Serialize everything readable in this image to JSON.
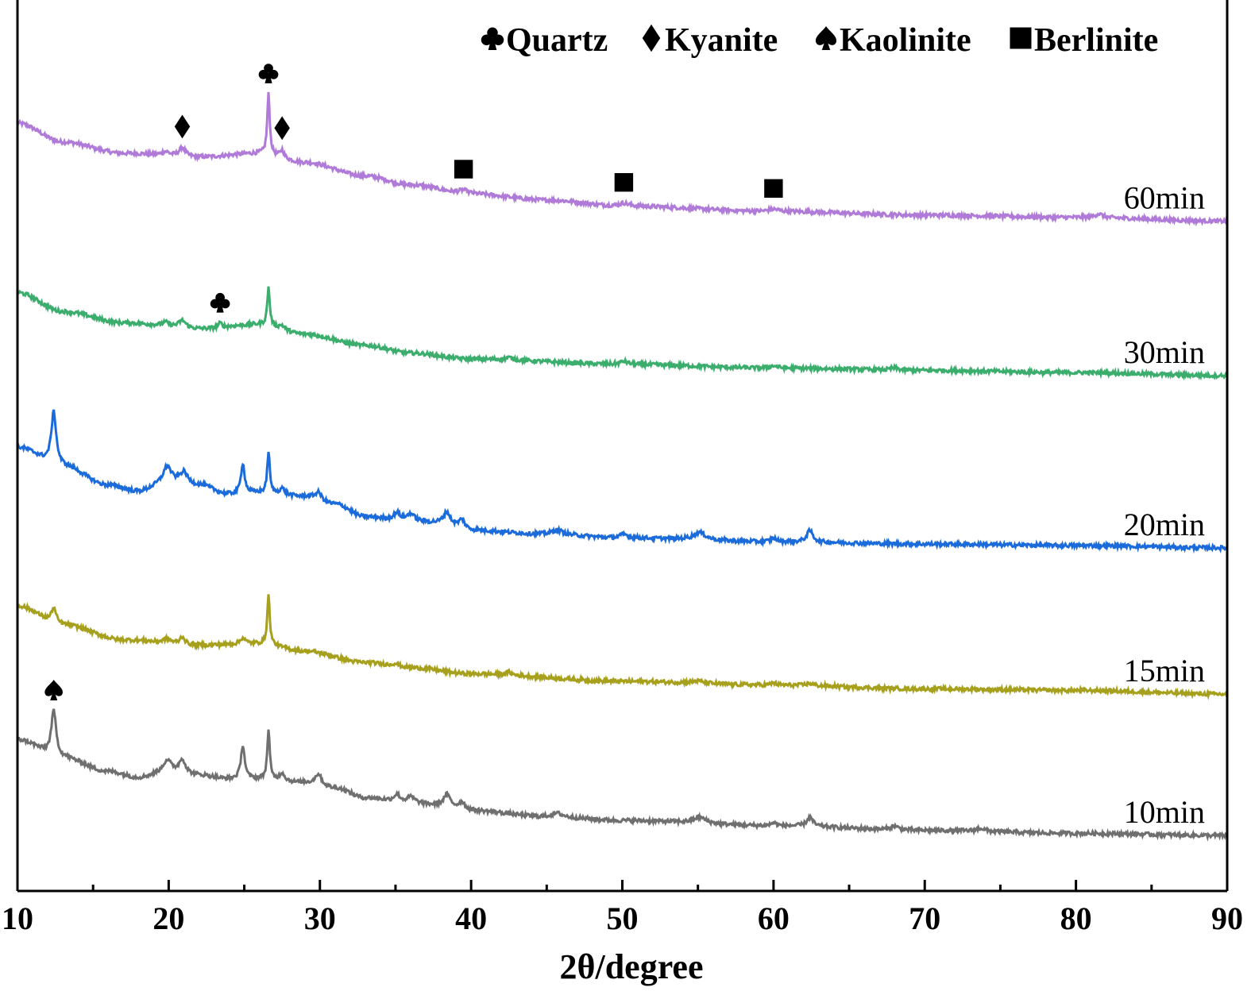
{
  "chart_data": {
    "type": "line",
    "xlabel": "2θ/degree",
    "ylabel": "",
    "xlim": [
      10,
      90
    ],
    "xticks": [
      10,
      20,
      30,
      40,
      50,
      60,
      70,
      80,
      90
    ],
    "grid": false,
    "legend_position": "top-right",
    "legend": [
      {
        "symbol": "club",
        "label": "Quartz"
      },
      {
        "symbol": "diamond",
        "label": "Kyanite"
      },
      {
        "symbol": "spade",
        "label": "Kaolinite"
      },
      {
        "symbol": "square",
        "label": "Berlinite"
      }
    ],
    "series": [
      {
        "name": "60min",
        "color": "#b07ad8",
        "baseline": [
          [
            10,
            1.0
          ],
          [
            13,
            0.75
          ],
          [
            17,
            0.6
          ],
          [
            22,
            0.55
          ],
          [
            26,
            0.6
          ],
          [
            29,
            0.48
          ],
          [
            33,
            0.3
          ],
          [
            36,
            0.18
          ],
          [
            40,
            0.06
          ],
          [
            45,
            -0.02
          ],
          [
            50,
            -0.1
          ],
          [
            60,
            -0.17
          ],
          [
            70,
            -0.22
          ],
          [
            80,
            -0.25
          ],
          [
            90,
            -0.3
          ]
        ],
        "peaks": [
          [
            19.8,
            0.05,
            0.3
          ],
          [
            20.9,
            0.12,
            0.25
          ],
          [
            26.6,
            0.8,
            0.1
          ],
          [
            27.5,
            0.1,
            0.15
          ],
          [
            39.5,
            0.05,
            0.4
          ],
          [
            50.1,
            0.04,
            0.4
          ],
          [
            60.0,
            0.03,
            0.4
          ],
          [
            81.5,
            0.05,
            0.3
          ]
        ]
      },
      {
        "name": "30min",
        "color": "#3bad6c",
        "baseline": [
          [
            10,
            0.7
          ],
          [
            13,
            0.45
          ],
          [
            17,
            0.3
          ],
          [
            22,
            0.22
          ],
          [
            26,
            0.28
          ],
          [
            29,
            0.15
          ],
          [
            33,
            0.0
          ],
          [
            36,
            -0.1
          ],
          [
            40,
            -0.18
          ],
          [
            50,
            -0.25
          ],
          [
            60,
            -0.3
          ],
          [
            70,
            -0.33
          ],
          [
            80,
            -0.36
          ],
          [
            90,
            -0.4
          ]
        ],
        "peaks": [
          [
            19.8,
            0.05,
            0.3
          ],
          [
            20.9,
            0.1,
            0.3
          ],
          [
            23.4,
            0.06,
            0.15
          ],
          [
            26.6,
            0.5,
            0.1
          ],
          [
            27.5,
            0.05,
            0.2
          ],
          [
            42.5,
            0.03,
            0.3
          ],
          [
            50.1,
            0.04,
            0.3
          ],
          [
            60.0,
            0.03,
            0.3
          ],
          [
            68.0,
            0.03,
            0.3
          ]
        ]
      },
      {
        "name": "20min",
        "color": "#1c6bdb",
        "baseline": [
          [
            10,
            0.7
          ],
          [
            13,
            0.45
          ],
          [
            16,
            0.2
          ],
          [
            18,
            0.12
          ],
          [
            20,
            0.25
          ],
          [
            22,
            0.2
          ],
          [
            24,
            0.08
          ],
          [
            26,
            0.1
          ],
          [
            29,
            0.05
          ],
          [
            31,
            -0.05
          ],
          [
            33,
            -0.22
          ],
          [
            36,
            -0.28
          ],
          [
            38,
            -0.3
          ],
          [
            40,
            -0.4
          ],
          [
            45,
            -0.45
          ],
          [
            50,
            -0.5
          ],
          [
            60,
            -0.55
          ],
          [
            70,
            -0.58
          ],
          [
            80,
            -0.6
          ],
          [
            90,
            -0.63
          ]
        ],
        "peaks": [
          [
            12.4,
            0.7,
            0.2
          ],
          [
            19.9,
            0.2,
            0.3
          ],
          [
            21.0,
            0.15,
            0.3
          ],
          [
            24.9,
            0.4,
            0.15
          ],
          [
            26.6,
            0.55,
            0.1
          ],
          [
            27.5,
            0.08,
            0.2
          ],
          [
            29.9,
            0.1,
            0.25
          ],
          [
            35.1,
            0.1,
            0.25
          ],
          [
            36.0,
            0.1,
            0.3
          ],
          [
            38.4,
            0.15,
            0.25
          ],
          [
            39.4,
            0.12,
            0.25
          ],
          [
            45.7,
            0.06,
            0.4
          ],
          [
            50.1,
            0.05,
            0.3
          ],
          [
            55.1,
            0.1,
            0.5
          ],
          [
            60.0,
            0.05,
            0.2
          ],
          [
            62.4,
            0.15,
            0.25
          ]
        ]
      },
      {
        "name": "15min",
        "color": "#a6a01c",
        "baseline": [
          [
            10,
            0.6
          ],
          [
            13,
            0.35
          ],
          [
            17,
            0.15
          ],
          [
            22,
            0.08
          ],
          [
            26,
            0.1
          ],
          [
            29,
            0.0
          ],
          [
            33,
            -0.15
          ],
          [
            36,
            -0.22
          ],
          [
            40,
            -0.3
          ],
          [
            50,
            -0.4
          ],
          [
            60,
            -0.45
          ],
          [
            70,
            -0.5
          ],
          [
            80,
            -0.52
          ],
          [
            90,
            -0.57
          ]
        ],
        "peaks": [
          [
            12.4,
            0.2,
            0.2
          ],
          [
            19.9,
            0.06,
            0.3
          ],
          [
            20.9,
            0.1,
            0.2
          ],
          [
            24.9,
            0.08,
            0.2
          ],
          [
            26.6,
            0.65,
            0.1
          ],
          [
            35.0,
            0.04,
            0.3
          ],
          [
            42.5,
            0.04,
            0.2
          ],
          [
            55.0,
            0.03,
            0.5
          ],
          [
            60.0,
            0.03,
            0.2
          ],
          [
            62.4,
            0.03,
            0.3
          ]
        ]
      },
      {
        "name": "10min",
        "color": "#6f6f6f",
        "baseline": [
          [
            10,
            0.72
          ],
          [
            13,
            0.48
          ],
          [
            16,
            0.3
          ],
          [
            18,
            0.22
          ],
          [
            20,
            0.3
          ],
          [
            22,
            0.25
          ],
          [
            24,
            0.2
          ],
          [
            26,
            0.2
          ],
          [
            29,
            0.15
          ],
          [
            31,
            0.08
          ],
          [
            33,
            -0.05
          ],
          [
            36,
            -0.12
          ],
          [
            38,
            -0.15
          ],
          [
            40,
            -0.22
          ],
          [
            45,
            -0.3
          ],
          [
            50,
            -0.35
          ],
          [
            60,
            -0.42
          ],
          [
            70,
            -0.48
          ],
          [
            80,
            -0.52
          ],
          [
            90,
            -0.55
          ]
        ],
        "peaks": [
          [
            12.4,
            0.6,
            0.2
          ],
          [
            19.9,
            0.15,
            0.3
          ],
          [
            20.9,
            0.18,
            0.25
          ],
          [
            24.9,
            0.45,
            0.15
          ],
          [
            26.6,
            0.65,
            0.1
          ],
          [
            27.5,
            0.1,
            0.2
          ],
          [
            29.9,
            0.15,
            0.25
          ],
          [
            35.1,
            0.1,
            0.25
          ],
          [
            36.0,
            0.08,
            0.3
          ],
          [
            38.4,
            0.15,
            0.25
          ],
          [
            39.4,
            0.1,
            0.25
          ],
          [
            45.7,
            0.05,
            0.4
          ],
          [
            55.1,
            0.08,
            0.5
          ],
          [
            60.0,
            0.04,
            0.2
          ],
          [
            62.4,
            0.12,
            0.25
          ],
          [
            68.0,
            0.05,
            0.3
          ],
          [
            73.7,
            0.04,
            0.3
          ]
        ]
      }
    ],
    "annotations": [
      {
        "series": "60min",
        "symbol": "diamond",
        "x": 20.9
      },
      {
        "series": "60min",
        "symbol": "club",
        "x": 26.6
      },
      {
        "series": "60min",
        "symbol": "diamond",
        "x": 27.5
      },
      {
        "series": "60min",
        "symbol": "square",
        "x": 39.5
      },
      {
        "series": "60min",
        "symbol": "square",
        "x": 50.1
      },
      {
        "series": "60min",
        "symbol": "square",
        "x": 60.0
      },
      {
        "series": "30min",
        "symbol": "club",
        "x": 23.4
      },
      {
        "series": "10min",
        "symbol": "spade",
        "x": 12.4
      }
    ]
  }
}
